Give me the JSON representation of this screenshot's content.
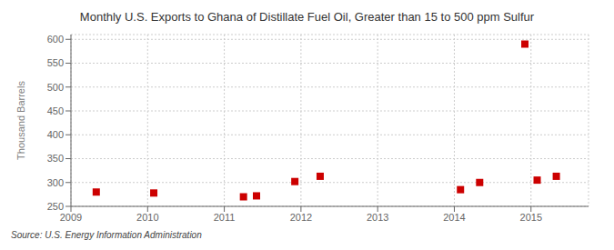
{
  "chart_data": {
    "type": "scatter",
    "title": "Monthly U.S. Exports to Ghana of Distillate Fuel Oil, Greater than 15 to 500 ppm Sulfur",
    "ylabel": "Thousand Barrels",
    "source": "Source: U.S. Energy Information Administration",
    "x": [
      2009.33,
      2010.08,
      2011.25,
      2011.42,
      2011.92,
      2012.25,
      2014.08,
      2014.33,
      2014.92,
      2015.08,
      2015.33
    ],
    "values": [
      280,
      278,
      270,
      272,
      302,
      313,
      285,
      300,
      590,
      305,
      313
    ],
    "color": "#cc0000",
    "marker": "square",
    "xlim": [
      2009,
      2015.75
    ],
    "ylim": [
      250,
      610
    ],
    "xticks": [
      2009,
      2010,
      2011,
      2012,
      2013,
      2014,
      2015
    ],
    "yticks": [
      250,
      300,
      350,
      400,
      450,
      500,
      550,
      600
    ],
    "grid": true
  }
}
